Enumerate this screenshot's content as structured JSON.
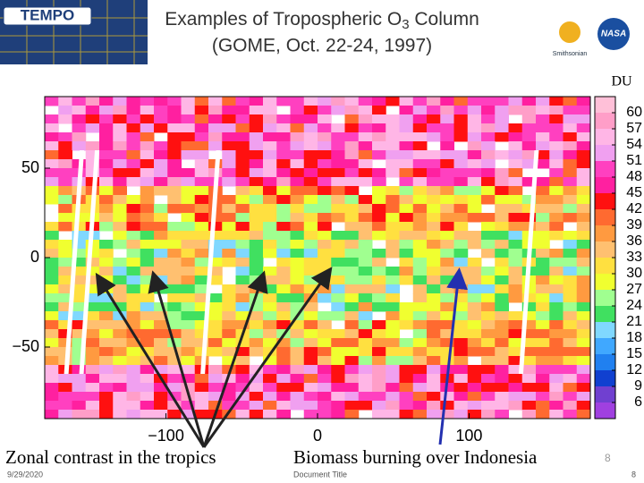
{
  "header": {
    "logo": "TEMPO",
    "title": {
      "before": "Examples of Tropospheric O",
      "sub": "3",
      "after": " Column"
    },
    "subtitle": "(GOME, Oct. 22-24, 1997)",
    "smithsonian": "Smithsonian",
    "nasa": "NASA"
  },
  "chart_data": {
    "type": "map",
    "xlim": [
      -180,
      180
    ],
    "ylim": [
      -90,
      90
    ],
    "xticks": [
      {
        "value": -100,
        "label": "−100"
      },
      0,
      100
    ],
    "yticks": [
      50,
      0,
      {
        "value": -50,
        "label": "−50"
      }
    ],
    "colorbar": {
      "unit": "DU",
      "ticks": [
        60,
        57,
        54,
        51,
        48,
        45,
        42,
        39,
        36,
        33,
        30,
        27,
        24,
        21,
        18,
        15,
        12,
        9,
        6
      ],
      "colors": [
        "#ffc0d8",
        "#ff9ec8",
        "#ffb6e6",
        "#f0a0f0",
        "#ff40c0",
        "#ff20a0",
        "#ff1010",
        "#ff6a30",
        "#ff9a40",
        "#ffc070",
        "#ffe040",
        "#f0ff30",
        "#a0ff90",
        "#40e060",
        "#80d8ff",
        "#40a8ff",
        "#2080f0",
        "#1040d0",
        "#7040d0",
        "#a040e0"
      ]
    }
  },
  "annotations": {
    "left": "Zonal contrast in the tropics",
    "right": "Biomass burning over Indonesia",
    "slide_mark": "8"
  },
  "footer": {
    "date": "9/29/2020",
    "doc_title": "Document Title",
    "page": "8"
  }
}
